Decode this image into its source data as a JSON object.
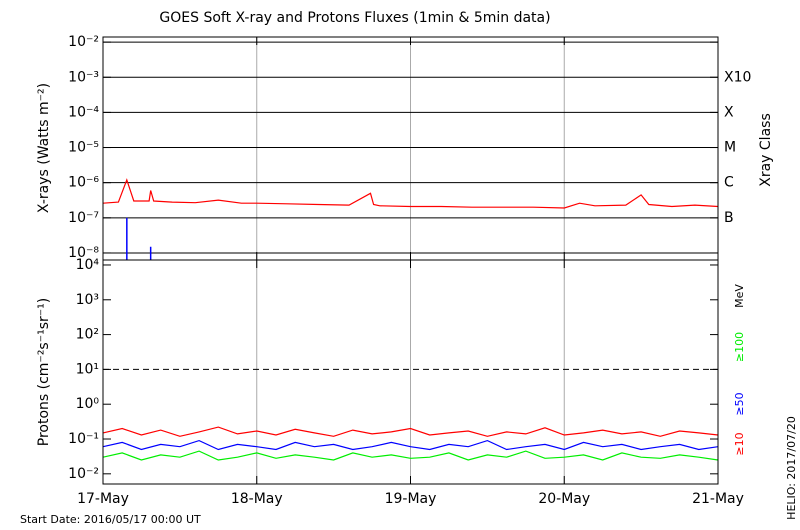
{
  "chart_data": [
    {
      "type": "line",
      "title": "GOES Soft X-ray and Protons Fluxes   (1min & 5min data)",
      "ylabel": "X-rays (Watts m⁻²)",
      "y2label": "Xray Class",
      "ylog": true,
      "xlim": [
        0,
        4
      ],
      "ylim": [
        6.3e-09,
        0.014
      ],
      "yticks": [
        {
          "value": 0.01,
          "label": "10⁻²"
        },
        {
          "value": 0.001,
          "label": "10⁻³"
        },
        {
          "value": 0.0001,
          "label": "10⁻⁴"
        },
        {
          "value": 1e-05,
          "label": "10⁻⁵"
        },
        {
          "value": 1e-06,
          "label": "10⁻⁶"
        },
        {
          "value": 1e-07,
          "label": "10⁻⁷"
        },
        {
          "value": 1e-08,
          "label": "10⁻⁸"
        }
      ],
      "classes": [
        {
          "value": 0.001,
          "label": "X10"
        },
        {
          "value": 0.0001,
          "label": "X"
        },
        {
          "value": 1e-05,
          "label": "M"
        },
        {
          "value": 1e-06,
          "label": "C"
        },
        {
          "value": 1e-07,
          "label": "B"
        }
      ],
      "grid": true,
      "x": [
        0,
        0.1,
        0.155,
        0.2,
        0.3,
        0.31,
        0.33,
        0.45,
        0.6,
        0.75,
        0.9,
        1.0,
        1.2,
        1.4,
        1.6,
        1.74,
        1.76,
        1.8,
        2.0,
        2.2,
        2.4,
        2.6,
        2.8,
        3.0,
        3.1,
        3.2,
        3.4,
        3.5,
        3.55,
        3.7,
        3.85,
        4.0
      ],
      "series": [
        {
          "color": "#ff0000",
          "values": [
            2.6e-07,
            2.8e-07,
            1.2e-06,
            3e-07,
            3e-07,
            6e-07,
            3e-07,
            2.8e-07,
            2.7e-07,
            3.2e-07,
            2.6e-07,
            2.6e-07,
            2.5e-07,
            2.4e-07,
            2.3e-07,
            5e-07,
            2.4e-07,
            2.2e-07,
            2.1e-07,
            2.1e-07,
            2e-07,
            2e-07,
            2e-07,
            1.9e-07,
            2.6e-07,
            2.2e-07,
            2.3e-07,
            4.5e-07,
            2.4e-07,
            2.1e-07,
            2.3e-07,
            2.1e-07
          ]
        },
        {
          "color": "#0000ff",
          "values": [
            null,
            null,
            1e-07,
            null,
            null,
            1.5e-08,
            null,
            null,
            null,
            null,
            null,
            null,
            null,
            null,
            null,
            null,
            null,
            null,
            null,
            null,
            null,
            null,
            null,
            null,
            null,
            null,
            null,
            null,
            null,
            null,
            null,
            null
          ]
        }
      ]
    },
    {
      "type": "line",
      "ylabel": "Protons (cm⁻²s⁻¹sr⁻¹)",
      "units": "MeV",
      "ylog": true,
      "xlim": [
        0,
        4
      ],
      "ylim": [
        0.0051,
        13900
      ],
      "xticks": [
        {
          "value": 0,
          "label": "17-May"
        },
        {
          "value": 1,
          "label": "18-May"
        },
        {
          "value": 2,
          "label": "19-May"
        },
        {
          "value": 3,
          "label": "20-May"
        },
        {
          "value": 4,
          "label": "21-May"
        }
      ],
      "yticks": [
        {
          "value": 10000,
          "label": "10⁴"
        },
        {
          "value": 1000,
          "label": "10³"
        },
        {
          "value": 100,
          "label": "10²"
        },
        {
          "value": 10,
          "label": "10¹"
        },
        {
          "value": 1,
          "label": "10⁰"
        },
        {
          "value": 0.1,
          "label": "10⁻¹"
        },
        {
          "value": 0.01,
          "label": "10⁻²"
        }
      ],
      "threshold": 10,
      "footnote": "Start Date: 2016/05/17 00:00 UT",
      "annotation": "HELIO: 2017/07/20",
      "x": [
        0,
        0.125,
        0.25,
        0.375,
        0.5,
        0.625,
        0.75,
        0.875,
        1,
        1.125,
        1.25,
        1.375,
        1.5,
        1.625,
        1.75,
        1.875,
        2,
        2.125,
        2.25,
        2.375,
        2.5,
        2.625,
        2.75,
        2.875,
        3,
        3.125,
        3.25,
        3.375,
        3.5,
        3.625,
        3.75,
        3.875,
        4
      ],
      "series": [
        {
          "name": "≥10",
          "color": "#ff0000",
          "values": [
            0.15,
            0.2,
            0.13,
            0.18,
            0.12,
            0.16,
            0.22,
            0.14,
            0.17,
            0.13,
            0.19,
            0.15,
            0.12,
            0.18,
            0.14,
            0.16,
            0.2,
            0.13,
            0.15,
            0.17,
            0.12,
            0.16,
            0.14,
            0.21,
            0.13,
            0.15,
            0.18,
            0.14,
            0.16,
            0.12,
            0.17,
            0.15,
            0.13
          ]
        },
        {
          "name": "≥50",
          "color": "#0000ff",
          "values": [
            0.06,
            0.08,
            0.05,
            0.07,
            0.06,
            0.09,
            0.05,
            0.07,
            0.06,
            0.05,
            0.08,
            0.06,
            0.07,
            0.05,
            0.06,
            0.08,
            0.06,
            0.05,
            0.07,
            0.06,
            0.09,
            0.05,
            0.06,
            0.07,
            0.05,
            0.08,
            0.06,
            0.07,
            0.05,
            0.06,
            0.07,
            0.05,
            0.06
          ]
        },
        {
          "name": "≥100",
          "color": "#00ee00",
          "values": [
            0.03,
            0.04,
            0.025,
            0.035,
            0.03,
            0.045,
            0.025,
            0.03,
            0.04,
            0.028,
            0.035,
            0.03,
            0.025,
            0.04,
            0.03,
            0.035,
            0.028,
            0.03,
            0.04,
            0.025,
            0.035,
            0.03,
            0.045,
            0.028,
            0.03,
            0.035,
            0.025,
            0.04,
            0.03,
            0.028,
            0.035,
            0.03,
            0.025
          ]
        }
      ]
    }
  ]
}
